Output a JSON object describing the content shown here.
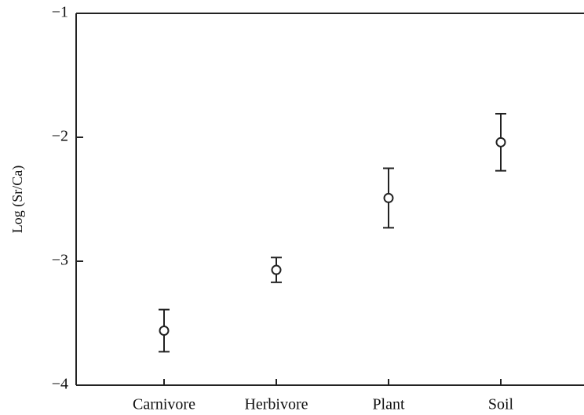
{
  "chart_data": {
    "type": "errorbar",
    "ylabel": "Log (Sr/Ca)",
    "categories": [
      "Carnivore",
      "Herbivore",
      "Plant",
      "Soil"
    ],
    "values": [
      -3.56,
      -3.07,
      -2.49,
      -2.04
    ],
    "errors": [
      0.17,
      0.1,
      0.24,
      0.23
    ],
    "color": "#222222",
    "ylim": [
      -4,
      -1
    ],
    "yticks": [
      {
        "value": -1,
        "label": "−1"
      },
      {
        "value": -2,
        "label": "−2"
      },
      {
        "value": -3,
        "label": "−3"
      },
      {
        "value": -4,
        "label": "−4"
      }
    ]
  }
}
